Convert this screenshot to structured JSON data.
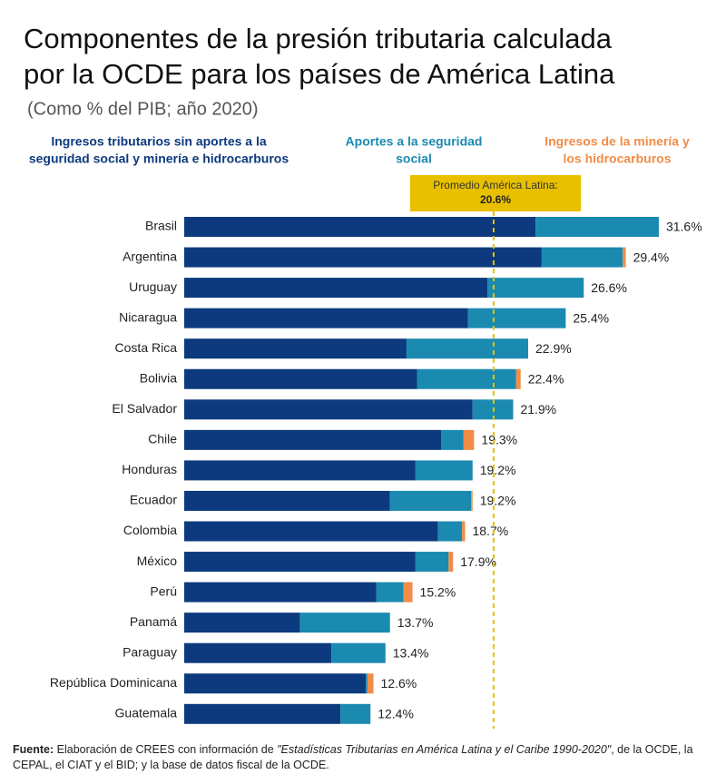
{
  "chart_data": {
    "type": "stacked-bar-horizontal",
    "title": [
      "Componentes de la presión tributaria calculada",
      "por la OCDE para los países de América Latina"
    ],
    "subtitle": "(Como % del PIB; año 2020)",
    "categories": [
      "Brasil",
      "Argentina",
      "Uruguay",
      "Nicaragua",
      "Costa Rica",
      "Bolivia",
      "El Salvador",
      "Chile",
      "Honduras",
      "Ecuador",
      "Colombia",
      "México",
      "Perú",
      "Panamá",
      "Paraguay",
      "República Dominicana",
      "Guatemala"
    ],
    "series": [
      {
        "name": [
          "Ingresos tributarios sin aportes a la",
          "seguridad social y minería e hidrocarburos"
        ],
        "color": "#0d3a7e",
        "values": [
          23.4,
          23.8,
          20.2,
          18.9,
          14.8,
          15.5,
          19.2,
          17.1,
          15.4,
          13.7,
          16.9,
          15.4,
          12.8,
          7.7,
          9.8,
          12.1,
          10.4
        ]
      },
      {
        "name": [
          "Aportes a la seguridad",
          "social"
        ],
        "color": "#1b8ab0",
        "values": [
          8.2,
          5.4,
          6.4,
          6.5,
          8.1,
          6.6,
          2.7,
          1.5,
          3.8,
          5.4,
          1.6,
          2.2,
          1.8,
          6.0,
          3.6,
          0.1,
          2.0
        ]
      },
      {
        "name": [
          "Ingresos de la minería y",
          "los hidrocarburos"
        ],
        "color": "#f08c47",
        "values": [
          0,
          0.2,
          0,
          0,
          0,
          0.3,
          0,
          0.7,
          0,
          0.1,
          0.2,
          0.3,
          0.6,
          0,
          0,
          0.4,
          0
        ]
      }
    ],
    "totals": {
      "values": [
        31.6,
        29.4,
        26.6,
        25.4,
        22.9,
        22.4,
        21.9,
        19.3,
        19.2,
        19.2,
        18.7,
        17.9,
        15.2,
        13.7,
        13.4,
        12.6,
        12.4
      ],
      "value_labels": [
        "31.6%",
        "29.4%",
        "26.6%",
        "25.4%",
        "22.9%",
        "22.4%",
        "21.9%",
        "19.3%",
        "19.2%",
        "19.2%",
        "18.7%",
        "17.9%",
        "15.2%",
        "13.7%",
        "13.4%",
        "12.6%",
        "12.4%"
      ]
    },
    "reference_line": {
      "value": 20.6,
      "label": "Promedio América Latina:",
      "value_label": "20.6%",
      "color": "#e8c000"
    },
    "source": {
      "label": "Fuente:",
      "text_before": "Elaboración de CREES con información de ",
      "italic": "\"Estadísticas Tributarias en América Latina y el Caribe 1990-2020\"",
      "text_after": ", de la OCDE, la CEPAL, el CIAT y el BID; y la base de datos fiscal de la OCDE."
    }
  }
}
